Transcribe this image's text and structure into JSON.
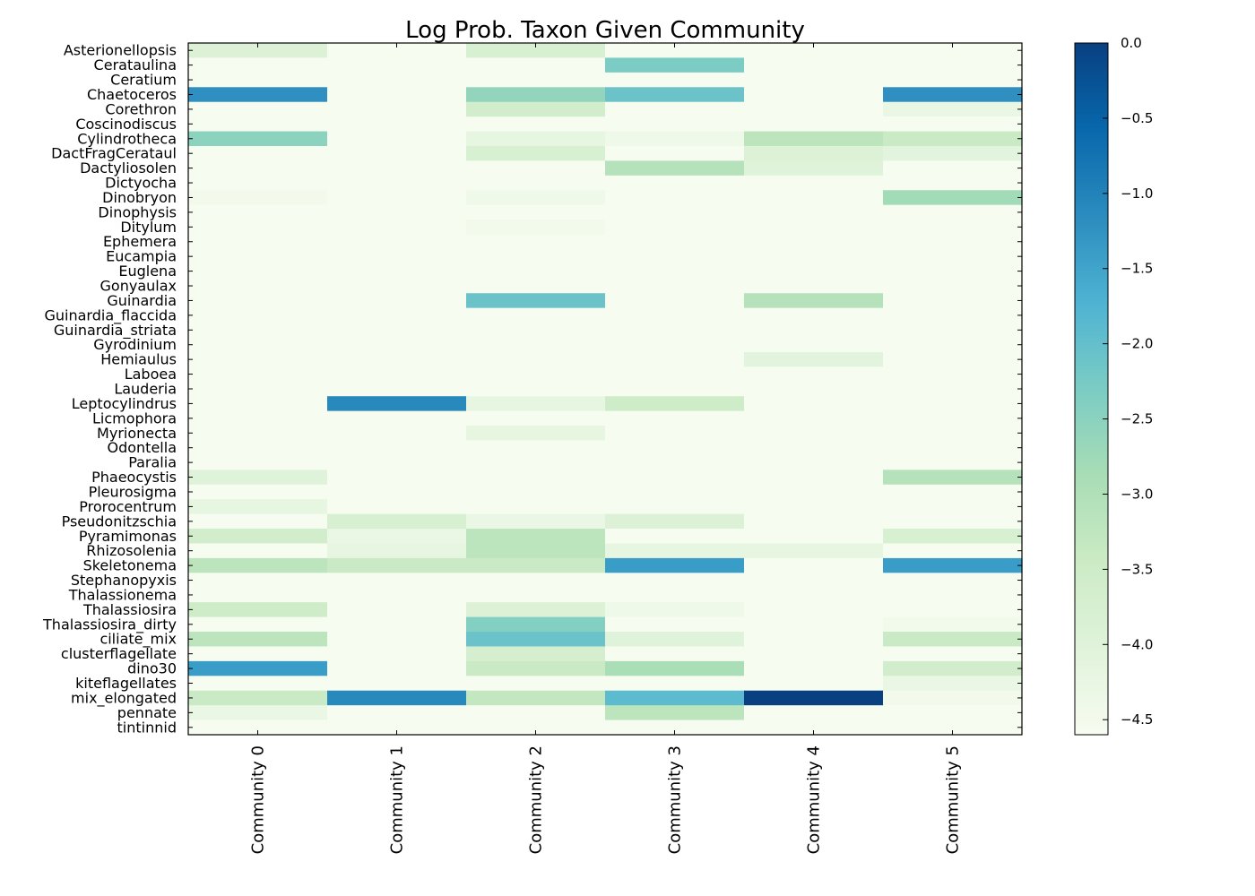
{
  "chart_data": {
    "type": "heatmap",
    "title": "Log Prob. Taxon Given Community",
    "xlabel": "",
    "ylabel": "",
    "colormap": "GnBu",
    "colorbar": {
      "min": -4.6,
      "max": 0.0,
      "ticks": [
        0.0,
        -0.5,
        -1.0,
        -1.5,
        -2.0,
        -2.5,
        -3.0,
        -3.5,
        -4.0,
        -4.5
      ],
      "tick_labels": [
        "0.0",
        "−0.5",
        "−1.0",
        "−1.5",
        "−2.0",
        "−2.5",
        "−3.0",
        "−3.5",
        "−4.0",
        "−4.5"
      ]
    },
    "columns": [
      "Community 0",
      "Community 1",
      "Community 2",
      "Community 3",
      "Community 4",
      "Community 5"
    ],
    "rows": [
      "Asterionellopsis",
      "Cerataulina",
      "Ceratium",
      "Chaetoceros",
      "Corethron",
      "Coscinodiscus",
      "Cylindrotheca",
      "DactFragCerataul",
      "Dactyliosolen",
      "Dictyocha",
      "Dinobryon",
      "Dinophysis",
      "Ditylum",
      "Ephemera",
      "Eucampia",
      "Euglena",
      "Gonyaulax",
      "Guinardia",
      "Guinardia_flaccida",
      "Guinardia_striata",
      "Gyrodinium",
      "Hemiaulus",
      "Laboea",
      "Lauderia",
      "Leptocylindrus",
      "Licmophora",
      "Myrionecta",
      "Odontella",
      "Paralia",
      "Phaeocystis",
      "Pleurosigma",
      "Prorocentrum",
      "Pseudonitzschia",
      "Pyramimonas",
      "Rhizosolenia",
      "Skeletonema",
      "Stephanopyxis",
      "Thalassionema",
      "Thalassiosira",
      "Thalassiosira_dirty",
      "ciliate_mix",
      "clusterflagellate",
      "dino30",
      "kiteflagellates",
      "mix_elongated",
      "pennate",
      "tintinnid"
    ],
    "values": [
      [
        -3.9,
        -4.6,
        -3.8,
        -4.6,
        -4.6,
        -4.6
      ],
      [
        -4.6,
        -4.6,
        -4.6,
        -2.3,
        -4.6,
        -4.6
      ],
      [
        -4.6,
        -4.6,
        -4.6,
        -4.6,
        -4.6,
        -4.6
      ],
      [
        -1.2,
        -4.6,
        -2.6,
        -2.1,
        -4.6,
        -1.2
      ],
      [
        -4.6,
        -4.6,
        -3.6,
        -4.6,
        -4.6,
        -4.3
      ],
      [
        -4.6,
        -4.6,
        -4.6,
        -4.6,
        -4.6,
        -4.6
      ],
      [
        -2.5,
        -4.6,
        -4.2,
        -4.4,
        -3.2,
        -3.4
      ],
      [
        -4.6,
        -4.6,
        -3.8,
        -4.6,
        -3.9,
        -4.1
      ],
      [
        -4.6,
        -4.6,
        -4.6,
        -3.1,
        -4.0,
        -4.6
      ],
      [
        -4.6,
        -4.6,
        -4.6,
        -4.6,
        -4.6,
        -4.6
      ],
      [
        -4.5,
        -4.6,
        -4.4,
        -4.6,
        -4.6,
        -2.8
      ],
      [
        -4.6,
        -4.6,
        -4.6,
        -4.6,
        -4.6,
        -4.6
      ],
      [
        -4.6,
        -4.6,
        -4.45,
        -4.6,
        -4.6,
        -4.6
      ],
      [
        -4.6,
        -4.6,
        -4.6,
        -4.6,
        -4.6,
        -4.6
      ],
      [
        -4.6,
        -4.6,
        -4.6,
        -4.6,
        -4.6,
        -4.6
      ],
      [
        -4.6,
        -4.6,
        -4.6,
        -4.6,
        -4.6,
        -4.6
      ],
      [
        -4.6,
        -4.6,
        -4.6,
        -4.6,
        -4.6,
        -4.6
      ],
      [
        -4.6,
        -4.6,
        -2.1,
        -4.6,
        -3.1,
        -4.6
      ],
      [
        -4.6,
        -4.6,
        -4.6,
        -4.6,
        -4.6,
        -4.6
      ],
      [
        -4.6,
        -4.6,
        -4.6,
        -4.6,
        -4.6,
        -4.6
      ],
      [
        -4.6,
        -4.6,
        -4.6,
        -4.6,
        -4.6,
        -4.6
      ],
      [
        -4.6,
        -4.6,
        -4.6,
        -4.6,
        -4.1,
        -4.6
      ],
      [
        -4.6,
        -4.6,
        -4.6,
        -4.6,
        -4.6,
        -4.6
      ],
      [
        -4.6,
        -4.6,
        -4.6,
        -4.6,
        -4.6,
        -4.6
      ],
      [
        -4.6,
        -1.1,
        -4.2,
        -3.5,
        -4.6,
        -4.6
      ],
      [
        -4.6,
        -4.6,
        -4.6,
        -4.6,
        -4.6,
        -4.6
      ],
      [
        -4.6,
        -4.6,
        -4.2,
        -4.6,
        -4.6,
        -4.6
      ],
      [
        -4.6,
        -4.6,
        -4.6,
        -4.6,
        -4.6,
        -4.6
      ],
      [
        -4.6,
        -4.6,
        -4.6,
        -4.6,
        -4.6,
        -4.6
      ],
      [
        -4.0,
        -4.6,
        -4.6,
        -4.6,
        -4.6,
        -3.1
      ],
      [
        -4.6,
        -4.6,
        -4.6,
        -4.6,
        -4.6,
        -4.6
      ],
      [
        -4.2,
        -4.6,
        -4.6,
        -4.6,
        -4.6,
        -4.6
      ],
      [
        -4.6,
        -3.8,
        -4.3,
        -3.9,
        -4.6,
        -4.6
      ],
      [
        -3.6,
        -4.3,
        -3.2,
        -4.6,
        -4.6,
        -3.8
      ],
      [
        -4.6,
        -4.2,
        -3.2,
        -4.2,
        -4.2,
        -4.6
      ],
      [
        -3.2,
        -3.4,
        -3.4,
        -1.4,
        -4.6,
        -1.4
      ],
      [
        -4.6,
        -4.6,
        -4.6,
        -4.6,
        -4.6,
        -4.6
      ],
      [
        -4.6,
        -4.6,
        -4.6,
        -4.6,
        -4.6,
        -4.6
      ],
      [
        -3.5,
        -4.6,
        -3.9,
        -4.4,
        -4.6,
        -4.6
      ],
      [
        -4.6,
        -4.6,
        -2.4,
        -4.6,
        -4.6,
        -4.45
      ],
      [
        -3.2,
        -4.6,
        -2.1,
        -4.0,
        -4.6,
        -3.4
      ],
      [
        -4.6,
        -4.6,
        -3.7,
        -4.6,
        -4.6,
        -4.6
      ],
      [
        -1.4,
        -4.6,
        -3.4,
        -2.9,
        -4.6,
        -3.6
      ],
      [
        -4.6,
        -4.6,
        -4.6,
        -4.6,
        -4.6,
        -4.3
      ],
      [
        -3.4,
        -1.1,
        -3.3,
        -1.9,
        0.0,
        -4.5
      ],
      [
        -4.3,
        -4.6,
        -4.6,
        -3.2,
        -4.6,
        -4.6
      ],
      [
        -4.6,
        -4.6,
        -4.6,
        -4.6,
        -4.6,
        -4.6
      ]
    ]
  }
}
